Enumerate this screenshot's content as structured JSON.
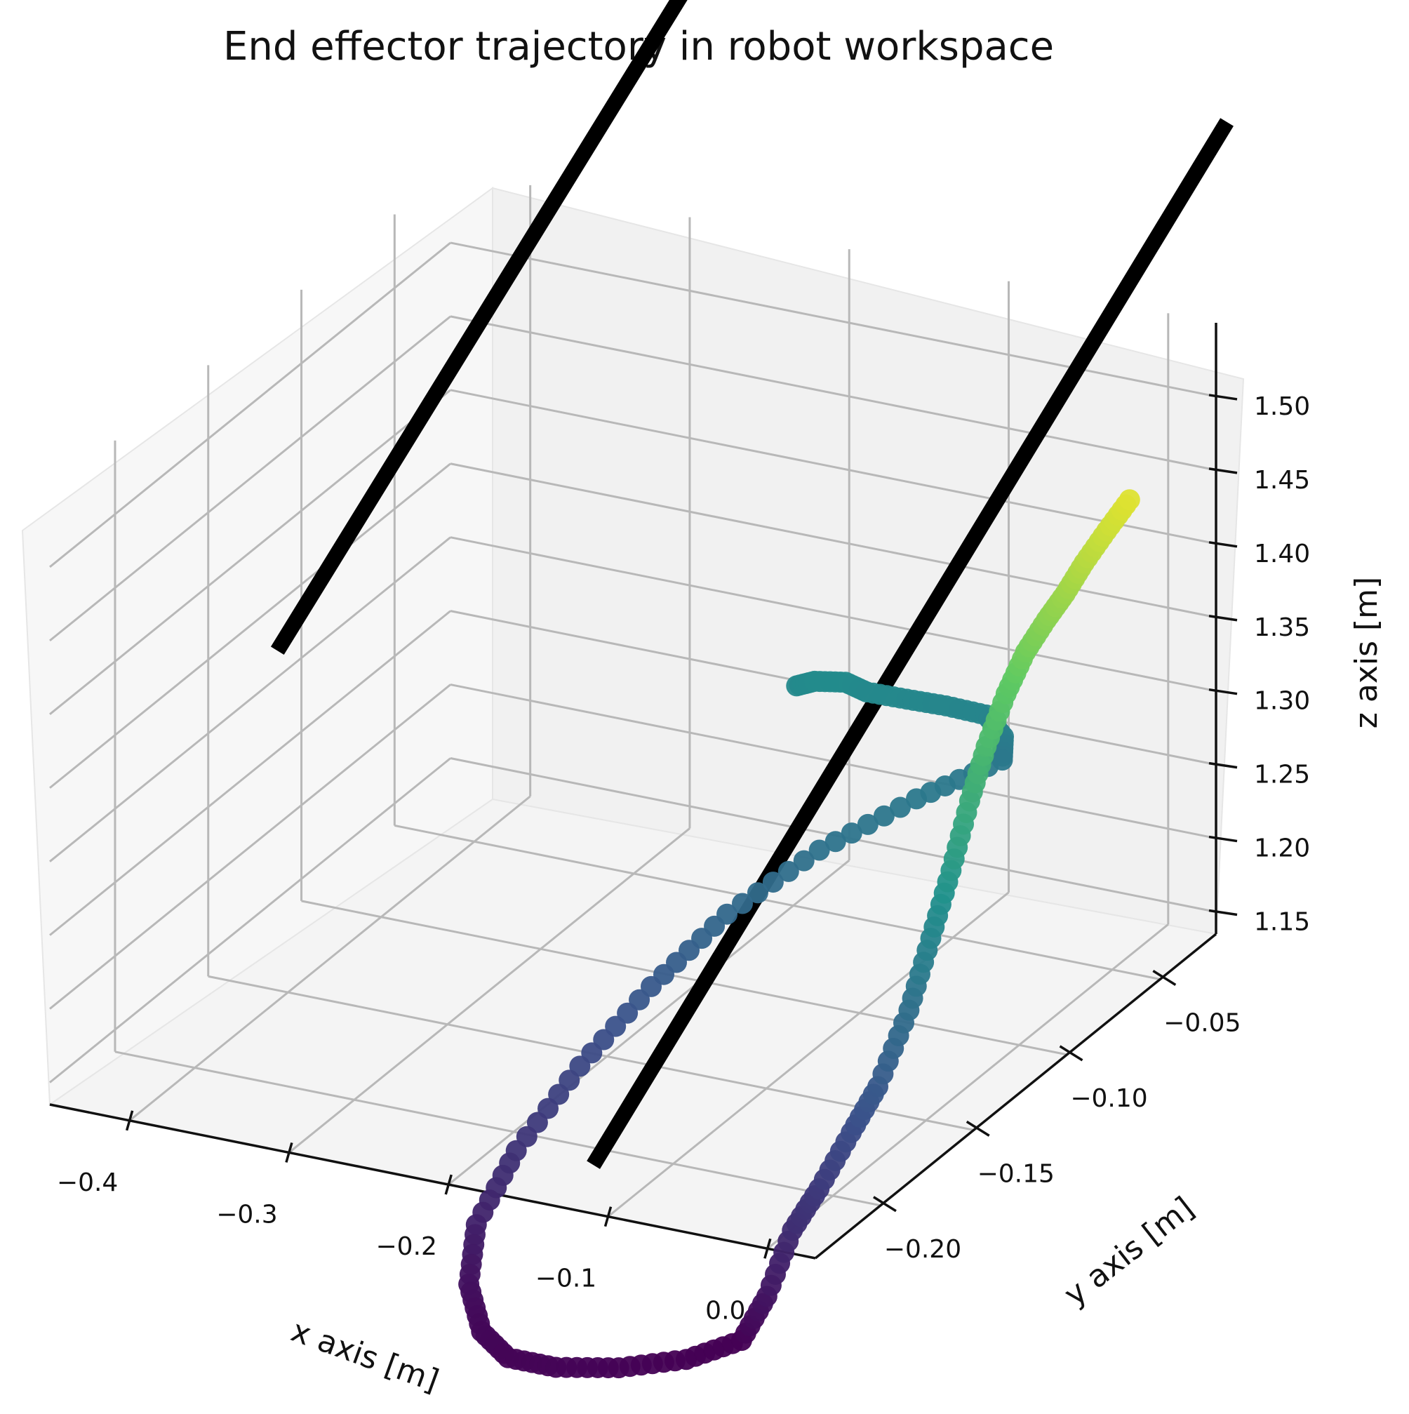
{
  "chart_data": {
    "type": "scatter",
    "projection": "3d",
    "title": "End effector trajectory in robot workspace",
    "xlabel": "x axis [m]",
    "ylabel": "y axis [m]",
    "zlabel": "z axis [m]",
    "x_ticks": [
      "−0.4",
      "−0.3",
      "−0.2",
      "−0.1",
      "0.0"
    ],
    "y_ticks": [
      "−0.20",
      "−0.15",
      "−0.10",
      "−0.05"
    ],
    "z_ticks": [
      "1.15",
      "1.20",
      "1.25",
      "1.30",
      "1.35",
      "1.40",
      "1.45",
      "1.50"
    ],
    "grid": true,
    "colormap": "viridis",
    "colors": {
      "viridis_start": "#440154",
      "viridis_mid": "#21918c",
      "viridis_end": "#fde725",
      "obstacle": "#000000",
      "grid": "#b8b8b8",
      "pane_left": "#f7f7f7",
      "pane_back": "#f1f1f1",
      "pane_floor": "#f4f4f4"
    },
    "obstacles": [
      {
        "name": "obstacle-line-1",
        "from": [
          -0.43,
          -0.13,
          1.34
        ],
        "to": [
          -0.43,
          0.21,
          1.69
        ]
      },
      {
        "name": "obstacle-line-2",
        "from": [
          -0.08,
          -0.26,
          1.2
        ],
        "to": [
          -0.08,
          0.08,
          1.56
        ]
      }
    ],
    "trajectory": [
      {
        "x": -0.247,
        "y": -0.008,
        "z": 1.231
      },
      {
        "x": -0.238,
        "y": -0.006,
        "z": 1.234
      },
      {
        "x": -0.221,
        "y": -0.004,
        "z": 1.235
      },
      {
        "x": -0.209,
        "y": -0.003,
        "z": 1.23
      },
      {
        "x": -0.186,
        "y": -0.001,
        "z": 1.228
      },
      {
        "x": -0.165,
        "y": 0.002,
        "z": 1.225
      },
      {
        "x": -0.141,
        "y": 0.003,
        "z": 1.223
      },
      {
        "x": -0.129,
        "y": 0.002,
        "z": 1.212
      },
      {
        "x": -0.125,
        "y": -0.002,
        "z": 1.201
      },
      {
        "x": -0.145,
        "y": -0.031,
        "z": 1.2
      },
      {
        "x": -0.172,
        "y": -0.06,
        "z": 1.189
      },
      {
        "x": -0.196,
        "y": -0.089,
        "z": 1.17
      },
      {
        "x": -0.212,
        "y": -0.116,
        "z": 1.145
      },
      {
        "x": -0.224,
        "y": -0.144,
        "z": 1.117
      },
      {
        "x": -0.23,
        "y": -0.173,
        "z": 1.088
      },
      {
        "x": -0.227,
        "y": -0.197,
        "z": 1.063
      },
      {
        "x": -0.213,
        "y": -0.213,
        "z": 1.042
      },
      {
        "x": -0.191,
        "y": -0.225,
        "z": 1.027
      },
      {
        "x": -0.165,
        "y": -0.233,
        "z": 1.023
      },
      {
        "x": -0.135,
        "y": -0.233,
        "z": 1.023
      },
      {
        "x": -0.105,
        "y": -0.225,
        "z": 1.021
      },
      {
        "x": -0.079,
        "y": -0.211,
        "z": 1.018
      },
      {
        "x": -0.063,
        "y": -0.195,
        "z": 1.018
      },
      {
        "x": -0.053,
        "y": -0.19,
        "z": 1.045
      },
      {
        "x": -0.051,
        "y": -0.178,
        "z": 1.078
      },
      {
        "x": -0.046,
        "y": -0.168,
        "z": 1.097
      },
      {
        "x": -0.041,
        "y": -0.155,
        "z": 1.123
      },
      {
        "x": -0.036,
        "y": -0.145,
        "z": 1.145
      },
      {
        "x": -0.034,
        "y": -0.13,
        "z": 1.182
      },
      {
        "x": -0.032,
        "y": -0.12,
        "z": 1.221
      },
      {
        "x": -0.031,
        "y": -0.11,
        "z": 1.257
      },
      {
        "x": -0.031,
        "y": -0.1,
        "z": 1.294
      },
      {
        "x": -0.03,
        "y": -0.092,
        "z": 1.323
      },
      {
        "x": -0.028,
        "y": -0.083,
        "z": 1.35
      },
      {
        "x": -0.024,
        "y": -0.076,
        "z": 1.372
      },
      {
        "x": -0.018,
        "y": -0.07,
        "z": 1.389
      },
      {
        "x": -0.012,
        "y": -0.065,
        "z": 1.403
      },
      {
        "x": -0.006,
        "y": -0.06,
        "z": 1.42
      },
      {
        "x": 0.0,
        "y": -0.053,
        "z": 1.436
      },
      {
        "x": 0.005,
        "y": -0.045,
        "z": 1.45
      }
    ]
  }
}
